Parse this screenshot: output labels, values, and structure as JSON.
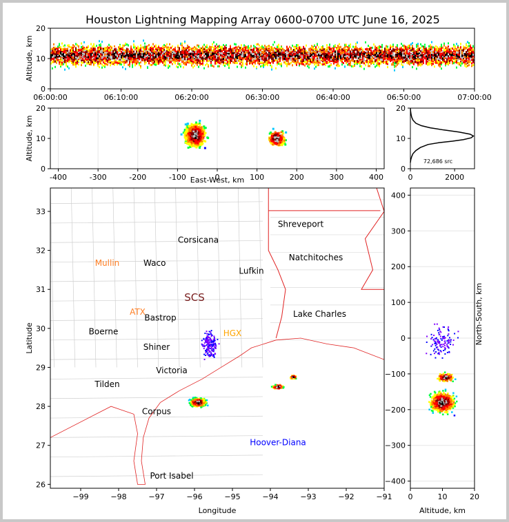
{
  "chart_data": [
    {
      "type": "heatmap",
      "title": "Houston Lightning Mapping Array 0600-0700 UTC June 16, 2025",
      "xlabel": "",
      "ylabel": "Altitude, km",
      "x_ticks": [
        "06:00:00",
        "06:10:00",
        "06:20:00",
        "06:30:00",
        "06:40:00",
        "06:50:00",
        "07:00:00"
      ],
      "y_ticks": [
        0,
        10,
        20
      ],
      "ylim": [
        0,
        20
      ],
      "description_values": "source density vs time and altitude, band 4-17 km, peak near 11 km"
    },
    {
      "type": "heatmap",
      "xlabel": "East-West, km",
      "ylabel": "Altitude, km",
      "x_ticks": [
        -400,
        -300,
        -200,
        -100,
        0,
        100,
        200,
        300,
        400
      ],
      "xlim": [
        -420,
        420
      ],
      "y_ticks": [
        0,
        10,
        20
      ],
      "ylim": [
        0,
        20
      ],
      "clusters": [
        {
          "x_range": [
            -100,
            0
          ],
          "alt_range": [
            2,
            20
          ],
          "peak": [
            -60,
            11
          ]
        },
        {
          "x_range": [
            100,
            230
          ],
          "alt_range": [
            6,
            16
          ],
          "peak": [
            150,
            10
          ]
        }
      ]
    },
    {
      "type": "line",
      "xlabel": "",
      "ylabel": "",
      "annotation": "72,686 src",
      "x_ticks": [
        0,
        2000
      ],
      "xlim": [
        0,
        2900
      ],
      "y_ticks": [
        0,
        10,
        20
      ],
      "ylim": [
        0,
        20
      ],
      "series": [
        {
          "x": [
            0,
            20,
            60,
            120,
            250,
            450,
            800,
            1300,
            1900,
            2400,
            2750,
            2850,
            2700,
            2200,
            1500,
            900,
            500,
            250,
            120,
            60,
            30,
            10,
            0
          ],
          "y": [
            2,
            3,
            4,
            5,
            6,
            7,
            8,
            8.6,
            9.1,
            9.6,
            10.2,
            10.8,
            11.4,
            12.1,
            12.8,
            13.5,
            14.2,
            15.0,
            16.0,
            17.0,
            18.0,
            19.0,
            20
          ]
        }
      ]
    },
    {
      "type": "scatter",
      "xlabel": "Longitude",
      "ylabel": "Latitude",
      "x_ticks": [
        -99,
        -98,
        -97,
        -96,
        -95,
        -94,
        -93,
        -92,
        -91
      ],
      "xlim": [
        -99.8,
        -91
      ],
      "y_ticks": [
        26,
        27,
        28,
        29,
        30,
        31,
        32,
        33
      ],
      "ylim": [
        25.9,
        33.6
      ],
      "clusters": [
        {
          "lon": -95.9,
          "lat": 28.1,
          "spread": [
            0.35,
            0.18
          ]
        },
        {
          "lon": -95.6,
          "lat": 29.6,
          "spread": [
            0.25,
            0.35
          ]
        },
        {
          "lon": -93.8,
          "lat": 28.5,
          "spread": [
            0.3,
            0.1
          ]
        },
        {
          "lon": -93.4,
          "lat": 28.75,
          "spread": [
            0.15,
            0.08
          ]
        }
      ],
      "labels": [
        {
          "text": "Shreveport",
          "lon": -93.2,
          "lat": 32.6,
          "color": "#000000"
        },
        {
          "text": "Corsicana",
          "lon": -95.9,
          "lat": 32.2,
          "color": "#000000"
        },
        {
          "text": "Natchitoches",
          "lon": -92.8,
          "lat": 31.75,
          "color": "#000000"
        },
        {
          "text": "Mullin",
          "lon": -98.3,
          "lat": 31.6,
          "color": "#ff7f24"
        },
        {
          "text": "Waco",
          "lon": -97.05,
          "lat": 31.6,
          "color": "#000000"
        },
        {
          "text": "Lufkin",
          "lon": -94.5,
          "lat": 31.4,
          "color": "#000000"
        },
        {
          "text": "SCS",
          "lon": -96.0,
          "lat": 30.7,
          "color": "#7a2020"
        },
        {
          "text": "ATX",
          "lon": -97.5,
          "lat": 30.35,
          "color": "#ff7f24"
        },
        {
          "text": "Bastrop",
          "lon": -96.9,
          "lat": 30.2,
          "color": "#000000"
        },
        {
          "text": "Lake Charles",
          "lon": -92.7,
          "lat": 30.3,
          "color": "#000000"
        },
        {
          "text": "HGX",
          "lon": -95.0,
          "lat": 29.8,
          "color": "#ffa500"
        },
        {
          "text": "Boerne",
          "lon": -98.4,
          "lat": 29.85,
          "color": "#000000"
        },
        {
          "text": "Shiner",
          "lon": -97.0,
          "lat": 29.45,
          "color": "#000000"
        },
        {
          "text": "Victoria",
          "lon": -96.6,
          "lat": 28.85,
          "color": "#000000"
        },
        {
          "text": "Tilden",
          "lon": -98.3,
          "lat": 28.5,
          "color": "#000000"
        },
        {
          "text": "Corpus",
          "lon": -97.0,
          "lat": 27.8,
          "color": "#000000"
        },
        {
          "text": "Hoover-Diana",
          "lon": -93.8,
          "lat": 27.0,
          "color": "#0000ff"
        },
        {
          "text": "Port Isabel",
          "lon": -96.6,
          "lat": 26.15,
          "color": "#000000"
        }
      ]
    },
    {
      "type": "heatmap",
      "xlabel": "Altitude, km",
      "ylabel": "North-South, km",
      "x_ticks": [
        0,
        10,
        20
      ],
      "xlim": [
        0,
        20
      ],
      "y_ticks": [
        -400,
        -300,
        -200,
        -100,
        0,
        100,
        200,
        300,
        400
      ],
      "ylim": [
        -420,
        420
      ],
      "clusters": [
        {
          "alt_range": [
            2,
            20
          ],
          "y_range": [
            -230,
            -130
          ],
          "peak": [
            10,
            -180
          ]
        },
        {
          "alt_range": [
            8,
            18
          ],
          "y_range": [
            -120,
            -80
          ],
          "peak": [
            11,
            -110
          ]
        }
      ]
    }
  ]
}
